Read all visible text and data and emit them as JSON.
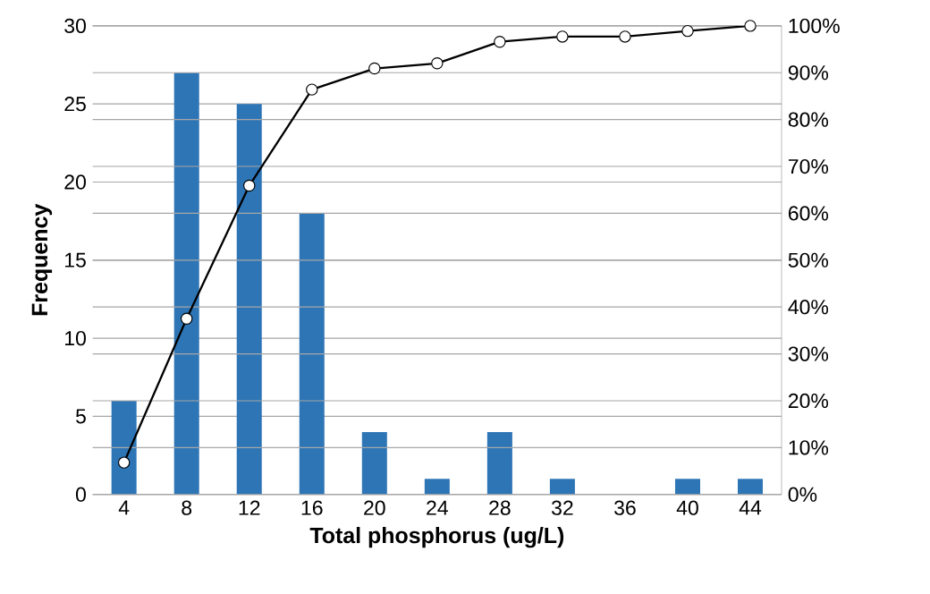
{
  "chart_data": {
    "type": "bar",
    "xlabel": "Total phosphorus (ug/L)",
    "ylabel": "Frequency",
    "categories": [
      "4",
      "8",
      "12",
      "16",
      "20",
      "24",
      "28",
      "32",
      "36",
      "40",
      "44"
    ],
    "series": [
      {
        "color": "#2e75b6",
        "values": [
          6,
          27,
          25,
          18,
          4,
          1,
          4,
          1,
          0,
          1,
          1
        ]
      },
      {
        "type": "line",
        "axis": "y2",
        "color": "#000000",
        "marker": "circle",
        "values": [
          6.8,
          37.5,
          65.9,
          86.4,
          90.9,
          92.0,
          96.6,
          97.7,
          97.7,
          98.9,
          100
        ]
      }
    ],
    "ylim": [
      0,
      30
    ],
    "yticks": [
      0,
      5,
      10,
      15,
      20,
      25,
      30
    ],
    "y2lim": [
      0,
      100
    ],
    "y2ticks": [
      {
        "value": 0,
        "label": "0%"
      },
      {
        "value": 10,
        "label": "10%"
      },
      {
        "value": 20,
        "label": "20%"
      },
      {
        "value": 30,
        "label": "30%"
      },
      {
        "value": 40,
        "label": "40%"
      },
      {
        "value": 50,
        "label": "50%"
      },
      {
        "value": 60,
        "label": "60%"
      },
      {
        "value": 70,
        "label": "70%"
      },
      {
        "value": 80,
        "label": "80%"
      },
      {
        "value": 90,
        "label": "90%"
      },
      {
        "value": 100,
        "label": "100%"
      }
    ],
    "grid": "y"
  }
}
